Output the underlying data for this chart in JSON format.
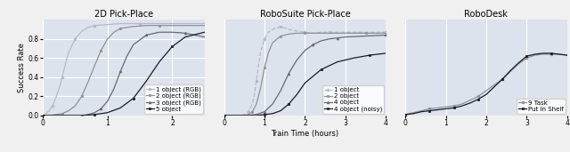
{
  "fig_width": 6.4,
  "fig_height": 1.71,
  "dpi": 100,
  "background_color": "#f0f0f0",
  "subplot_background": "#dde3ed",
  "grid_color": "white",
  "titles": [
    "2D Pick-Place",
    "RoboSuite Pick-Place",
    "RoboDesk"
  ],
  "xlabel": "Train Time (hours)",
  "ylabel": "Success Rate",
  "title_fontsize": 7,
  "label_fontsize": 6,
  "tick_fontsize": 5.5,
  "legend_fontsize": 5,
  "plot1": {
    "xlim": [
      0,
      2.5
    ],
    "ylim": [
      0.0,
      1.0
    ],
    "xticks": [
      0,
      1,
      2
    ],
    "yticks": [
      0.0,
      0.2,
      0.4,
      0.6,
      0.8
    ],
    "series": [
      {
        "label": "1 object (RGB)",
        "color": "#b8b8c8",
        "marker": "o",
        "linestyle": "-",
        "x": [
          0.0,
          0.05,
          0.1,
          0.15,
          0.2,
          0.25,
          0.3,
          0.35,
          0.4,
          0.5,
          0.6,
          0.7,
          0.8,
          1.0,
          1.2,
          1.5,
          2.0,
          2.5
        ],
        "y": [
          0.0,
          0.02,
          0.05,
          0.1,
          0.18,
          0.28,
          0.4,
          0.54,
          0.66,
          0.8,
          0.88,
          0.92,
          0.94,
          0.95,
          0.96,
          0.96,
          0.96,
          0.96
        ]
      },
      {
        "label": "2 object (RGB)",
        "color": "#909098",
        "marker": "s",
        "linestyle": "-",
        "x": [
          0.0,
          0.1,
          0.2,
          0.3,
          0.4,
          0.5,
          0.6,
          0.7,
          0.8,
          0.9,
          1.0,
          1.1,
          1.2,
          1.4,
          1.6,
          1.8,
          2.0,
          2.5
        ],
        "y": [
          0.0,
          0.0,
          0.01,
          0.02,
          0.05,
          0.1,
          0.2,
          0.35,
          0.52,
          0.68,
          0.8,
          0.87,
          0.91,
          0.93,
          0.94,
          0.94,
          0.94,
          0.94
        ]
      },
      {
        "label": "3 object (RGB)",
        "color": "#686878",
        "marker": "^",
        "linestyle": "-",
        "x": [
          0.0,
          0.2,
          0.4,
          0.6,
          0.7,
          0.8,
          0.9,
          1.0,
          1.1,
          1.2,
          1.3,
          1.4,
          1.6,
          1.8,
          2.0,
          2.2,
          2.5
        ],
        "y": [
          0.0,
          0.0,
          0.0,
          0.0,
          0.01,
          0.03,
          0.07,
          0.15,
          0.28,
          0.46,
          0.62,
          0.74,
          0.84,
          0.87,
          0.87,
          0.86,
          0.82
        ]
      },
      {
        "label": "5 object",
        "color": "#1a1a28",
        "marker": "s",
        "linestyle": "-",
        "x": [
          0.0,
          0.4,
          0.6,
          0.8,
          1.0,
          1.2,
          1.4,
          1.6,
          1.8,
          2.0,
          2.2,
          2.5
        ],
        "y": [
          0.0,
          0.0,
          0.0,
          0.01,
          0.03,
          0.08,
          0.18,
          0.36,
          0.56,
          0.72,
          0.82,
          0.87
        ]
      }
    ]
  },
  "plot2": {
    "xlim": [
      0,
      4
    ],
    "ylim": [
      0.0,
      1.0
    ],
    "xticks": [
      0,
      1,
      2,
      3,
      4
    ],
    "yticks": [],
    "series": [
      {
        "label": "1 object",
        "color": "#b8b8c8",
        "marker": "o",
        "linestyle": "--",
        "x": [
          0.0,
          0.4,
          0.5,
          0.6,
          0.7,
          0.75,
          0.8,
          0.85,
          0.9,
          1.0,
          1.1,
          1.2,
          1.4,
          1.6,
          1.8,
          2.0,
          2.2,
          2.4,
          2.6,
          3.0,
          3.5,
          4.0
        ],
        "y": [
          0.0,
          0.0,
          0.01,
          0.04,
          0.12,
          0.22,
          0.36,
          0.52,
          0.66,
          0.8,
          0.87,
          0.9,
          0.93,
          0.9,
          0.88,
          0.87,
          0.86,
          0.87,
          0.87,
          0.87,
          0.87,
          0.87
        ]
      },
      {
        "label": "2 object",
        "color": "#909098",
        "marker": "s",
        "linestyle": "-",
        "x": [
          0.0,
          0.5,
          0.6,
          0.7,
          0.8,
          0.9,
          1.0,
          1.1,
          1.2,
          1.4,
          1.6,
          1.8,
          2.0,
          2.5,
          3.0,
          3.5,
          4.0
        ],
        "y": [
          0.0,
          0.0,
          0.01,
          0.04,
          0.12,
          0.28,
          0.5,
          0.66,
          0.76,
          0.83,
          0.85,
          0.86,
          0.86,
          0.86,
          0.86,
          0.86,
          0.86
        ]
      },
      {
        "label": "4 object",
        "color": "#686878",
        "marker": "^",
        "linestyle": "-",
        "x": [
          0.0,
          0.6,
          0.8,
          1.0,
          1.2,
          1.4,
          1.6,
          1.8,
          2.0,
          2.2,
          2.4,
          2.6,
          2.8,
          3.0,
          3.5,
          4.0
        ],
        "y": [
          0.0,
          0.0,
          0.01,
          0.04,
          0.12,
          0.26,
          0.44,
          0.58,
          0.68,
          0.74,
          0.78,
          0.8,
          0.81,
          0.82,
          0.83,
          0.84
        ]
      },
      {
        "label": "4 object (noisy)",
        "color": "#1a1a28",
        "marker": "s",
        "linestyle": "-",
        "x": [
          0.0,
          0.6,
          0.8,
          1.0,
          1.2,
          1.4,
          1.6,
          1.8,
          2.0,
          2.4,
          2.8,
          3.2,
          3.6,
          4.0
        ],
        "y": [
          0.0,
          0.0,
          0.0,
          0.01,
          0.02,
          0.05,
          0.12,
          0.22,
          0.34,
          0.48,
          0.56,
          0.6,
          0.63,
          0.65
        ]
      }
    ]
  },
  "plot3": {
    "xlim": [
      0,
      4
    ],
    "ylim": [
      0.0,
      1.0
    ],
    "xticks": [
      0,
      1,
      2,
      3,
      4
    ],
    "yticks": [],
    "series": [
      {
        "label": "9 Task",
        "color": "#909098",
        "marker": "o",
        "linestyle": "-",
        "x": [
          0.0,
          0.2,
          0.4,
          0.6,
          0.8,
          1.0,
          1.2,
          1.4,
          1.6,
          1.8,
          2.0,
          2.2,
          2.4,
          2.6,
          2.8,
          3.0,
          3.2,
          3.4,
          3.6,
          3.8,
          4.0
        ],
        "y": [
          0.01,
          0.03,
          0.05,
          0.07,
          0.08,
          0.09,
          0.1,
          0.12,
          0.16,
          0.2,
          0.26,
          0.32,
          0.38,
          0.46,
          0.54,
          0.6,
          0.63,
          0.64,
          0.64,
          0.64,
          0.63
        ]
      },
      {
        "label": "Put In Shelf",
        "color": "#1a1a28",
        "marker": "s",
        "linestyle": "-",
        "x": [
          0.0,
          0.2,
          0.4,
          0.6,
          0.8,
          1.0,
          1.2,
          1.4,
          1.6,
          1.8,
          2.0,
          2.2,
          2.4,
          2.6,
          2.8,
          3.0,
          3.2,
          3.4,
          3.6,
          3.8,
          4.0
        ],
        "y": [
          0.01,
          0.02,
          0.04,
          0.05,
          0.06,
          0.07,
          0.08,
          0.1,
          0.13,
          0.17,
          0.22,
          0.3,
          0.38,
          0.47,
          0.55,
          0.62,
          0.64,
          0.65,
          0.65,
          0.64,
          0.63
        ]
      }
    ]
  }
}
